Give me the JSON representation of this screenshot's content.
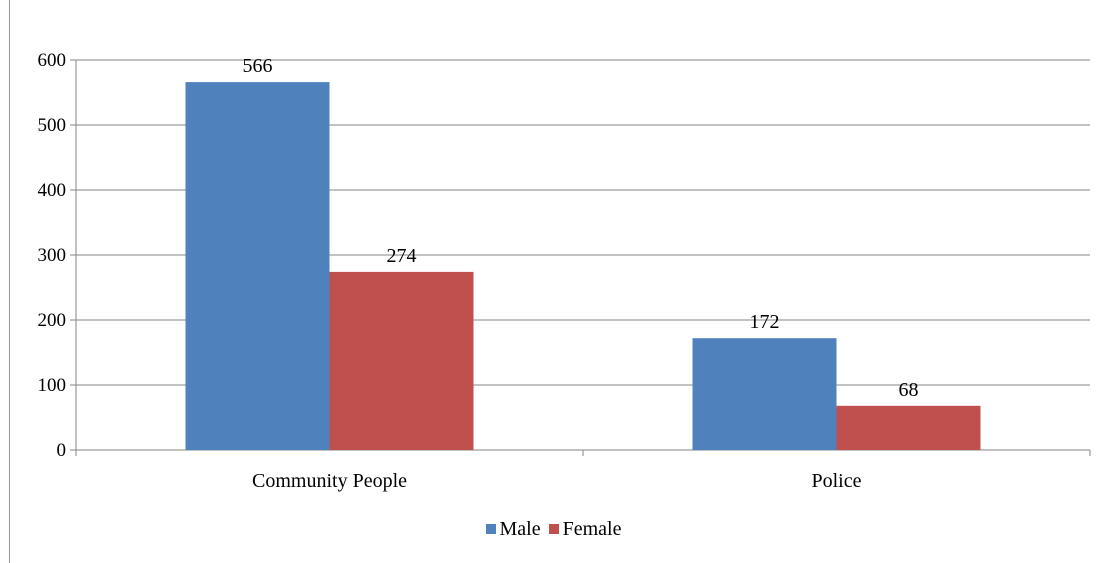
{
  "chart_data": {
    "type": "bar",
    "title": "",
    "xlabel": "",
    "ylabel": "",
    "categories": [
      "Community People",
      "Police"
    ],
    "series": [
      {
        "name": "Male",
        "values": [
          566,
          172
        ],
        "color": "#4f81bd"
      },
      {
        "name": "Female",
        "values": [
          274,
          68
        ],
        "color": "#c0504d"
      }
    ],
    "ylim": [
      0,
      600
    ],
    "yticks": [
      0,
      100,
      200,
      300,
      400,
      500,
      600
    ],
    "grid": true,
    "legend": "bottom"
  }
}
